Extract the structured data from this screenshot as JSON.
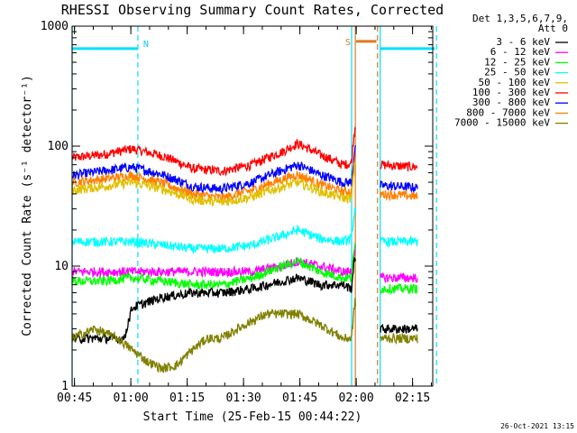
{
  "chart_data": {
    "type": "line",
    "title": "RHESSI Observing Summary Count Rates, Corrected",
    "xlabel": "Start Time (25-Feb-15 00:44:22)",
    "ylabel": "Corrected Count Rate (s⁻¹ detector⁻¹)",
    "y_scale": "log",
    "ylim": [
      1,
      1000
    ],
    "y_ticks": [
      "1",
      "10",
      "100",
      "1000"
    ],
    "xlim_minutes": [
      0,
      96
    ],
    "x_ticks": [
      "00:45",
      "01:00",
      "01:15",
      "01:30",
      "01:45",
      "02:00",
      "02:15"
    ],
    "legend": {
      "position": "right",
      "header": [
        "Det 1,3,5,6,7,9,",
        "Att 0"
      ],
      "entries": [
        {
          "label": "3 - 6 keV",
          "color": "#000000"
        },
        {
          "label": "6 - 12 keV",
          "color": "#ff00ff"
        },
        {
          "label": "12 - 25 keV",
          "color": "#00ff00"
        },
        {
          "label": "25 - 50 keV",
          "color": "#00ffff"
        },
        {
          "label": "50 - 100 keV",
          "color": "#e0c000"
        },
        {
          "label": "100 - 300 keV",
          "color": "#ff0000"
        },
        {
          "label": "300 - 800 keV",
          "color": "#0000ff"
        },
        {
          "label": "800 - 7000 keV",
          "color": "#ff8000"
        },
        {
          "label": "7000 - 15000 keV",
          "color": "#808000"
        }
      ]
    },
    "annotations": {
      "night_label": "N",
      "saa_label": "S",
      "night_bar": {
        "start": 0,
        "end": 17.5,
        "value": 650
      },
      "saa_bar": {
        "start": 75.6,
        "end": 81.0,
        "value": 650
      },
      "day_bar": {
        "start": 82.0,
        "end": 97.0,
        "value": 650
      },
      "cyan_vlines": [
        0,
        17.5,
        74.4,
        82.0,
        97.0
      ],
      "saa_vlines": [
        75.4,
        81.3
      ],
      "data_gap": [
        75.6,
        82.0
      ]
    },
    "series": [
      {
        "name": "100 - 300 keV",
        "color": "#ff0000",
        "points": [
          [
            0,
            80
          ],
          [
            8,
            85
          ],
          [
            16,
            95
          ],
          [
            24,
            83
          ],
          [
            32,
            65
          ],
          [
            40,
            62
          ],
          [
            48,
            70
          ],
          [
            56,
            90
          ],
          [
            60,
            105
          ],
          [
            66,
            85
          ],
          [
            72,
            70
          ],
          [
            74.4,
            72
          ],
          [
            75.3,
            145
          ],
          [
            82,
            70
          ],
          [
            88,
            68
          ],
          [
            92,
            67
          ]
        ]
      },
      {
        "name": "300 - 800 keV",
        "color": "#0000ff",
        "points": [
          [
            0,
            57
          ],
          [
            8,
            62
          ],
          [
            16,
            67
          ],
          [
            24,
            58
          ],
          [
            32,
            46
          ],
          [
            40,
            44
          ],
          [
            48,
            50
          ],
          [
            56,
            63
          ],
          [
            60,
            70
          ],
          [
            66,
            58
          ],
          [
            72,
            50
          ],
          [
            74.4,
            50
          ],
          [
            75.3,
            95
          ],
          [
            82,
            47
          ],
          [
            88,
            46
          ],
          [
            92,
            45
          ]
        ]
      },
      {
        "name": "800 - 7000 keV",
        "color": "#ff8000",
        "points": [
          [
            0,
            50
          ],
          [
            8,
            53
          ],
          [
            16,
            57
          ],
          [
            24,
            49
          ],
          [
            32,
            40
          ],
          [
            40,
            37
          ],
          [
            48,
            43
          ],
          [
            56,
            53
          ],
          [
            60,
            58
          ],
          [
            66,
            48
          ],
          [
            72,
            42
          ],
          [
            74.4,
            42
          ],
          [
            75.3,
            80
          ],
          [
            82,
            40
          ],
          [
            88,
            39
          ],
          [
            92,
            38
          ]
        ]
      },
      {
        "name": "50 - 100 keV",
        "color": "#e0c000",
        "points": [
          [
            0,
            43
          ],
          [
            8,
            46
          ],
          [
            16,
            50
          ],
          [
            24,
            44
          ],
          [
            32,
            36
          ],
          [
            40,
            34
          ],
          [
            48,
            38
          ],
          [
            56,
            46
          ],
          [
            60,
            50
          ],
          [
            66,
            42
          ],
          [
            72,
            37
          ],
          [
            74.4,
            37
          ],
          [
            75.3,
            70
          ]
        ]
      },
      {
        "name": "25 - 50 keV",
        "color": "#00ffff",
        "points": [
          [
            0,
            16
          ],
          [
            8,
            16
          ],
          [
            16,
            16
          ],
          [
            24,
            15
          ],
          [
            32,
            14
          ],
          [
            40,
            14
          ],
          [
            48,
            15
          ],
          [
            56,
            18
          ],
          [
            60,
            20
          ],
          [
            66,
            17
          ],
          [
            72,
            16
          ],
          [
            74.4,
            17
          ],
          [
            75.3,
            30
          ],
          [
            82,
            16
          ],
          [
            88,
            16
          ],
          [
            92,
            16
          ]
        ]
      },
      {
        "name": "6 - 12 keV",
        "color": "#ff00ff",
        "points": [
          [
            0,
            9
          ],
          [
            8,
            9
          ],
          [
            16,
            9
          ],
          [
            24,
            9
          ],
          [
            32,
            9
          ],
          [
            40,
            9
          ],
          [
            48,
            9
          ],
          [
            56,
            10
          ],
          [
            60,
            11
          ],
          [
            66,
            10
          ],
          [
            72,
            9
          ],
          [
            74.4,
            9
          ],
          [
            75.3,
            14
          ],
          [
            82,
            8
          ],
          [
            88,
            8
          ],
          [
            92,
            8
          ]
        ]
      },
      {
        "name": "12 - 25 keV",
        "color": "#00ff00",
        "points": [
          [
            0,
            7.5
          ],
          [
            8,
            7.5
          ],
          [
            16,
            8
          ],
          [
            24,
            7.5
          ],
          [
            32,
            7
          ],
          [
            40,
            7
          ],
          [
            48,
            8
          ],
          [
            56,
            10
          ],
          [
            60,
            11
          ],
          [
            66,
            9
          ],
          [
            72,
            8
          ],
          [
            74.4,
            8
          ],
          [
            75.3,
            15
          ],
          [
            82,
            6.5
          ],
          [
            88,
            6.5
          ],
          [
            92,
            6.5
          ]
        ]
      },
      {
        "name": "3 - 6 keV",
        "color": "#000000",
        "points": [
          [
            0,
            2.5
          ],
          [
            8,
            2.5
          ],
          [
            14,
            2.5
          ],
          [
            16,
            4.5
          ],
          [
            20,
            5
          ],
          [
            24,
            5.5
          ],
          [
            32,
            6
          ],
          [
            40,
            6
          ],
          [
            48,
            6.5
          ],
          [
            56,
            7.5
          ],
          [
            60,
            8
          ],
          [
            66,
            7
          ],
          [
            72,
            7
          ],
          [
            74.4,
            6.5
          ],
          [
            75.3,
            12
          ],
          [
            82,
            3
          ],
          [
            88,
            3
          ],
          [
            92,
            3
          ]
        ]
      },
      {
        "name": "7000 - 15000 keV",
        "color": "#808000",
        "points": [
          [
            0,
            2.5
          ],
          [
            6,
            3
          ],
          [
            12,
            2.5
          ],
          [
            16,
            2
          ],
          [
            20,
            1.6
          ],
          [
            24,
            1.4
          ],
          [
            28,
            1.5
          ],
          [
            32,
            2
          ],
          [
            36,
            2.5
          ],
          [
            40,
            2.5
          ],
          [
            44,
            3
          ],
          [
            48,
            3.5
          ],
          [
            52,
            4
          ],
          [
            56,
            4
          ],
          [
            60,
            4
          ],
          [
            64,
            3.5
          ],
          [
            68,
            3
          ],
          [
            72,
            2.5
          ],
          [
            74.4,
            2.5
          ],
          [
            75.3,
            5
          ],
          [
            82,
            2.5
          ],
          [
            88,
            2.5
          ],
          [
            92,
            2.5
          ]
        ]
      }
    ]
  },
  "timestamp": "26-Oct-2021 13:15"
}
